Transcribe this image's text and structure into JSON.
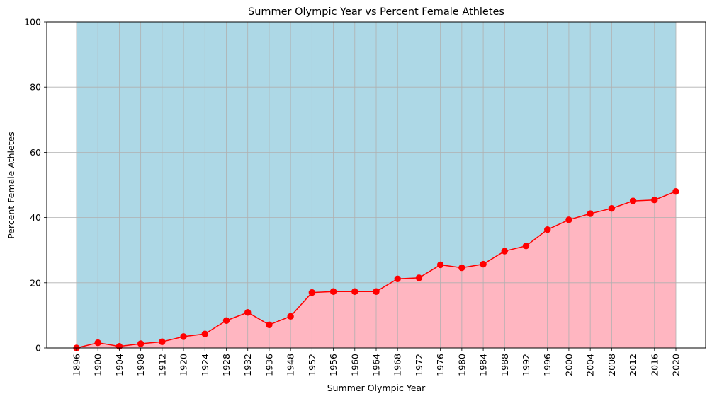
{
  "chart_data": {
    "type": "area",
    "title": "Summer Olympic Year vs Percent Female Athletes",
    "xlabel": "Summer Olympic Year",
    "ylabel": "Percent Female Athletes",
    "ylim": [
      0,
      100
    ],
    "yticks": [
      0,
      20,
      40,
      60,
      80,
      100
    ],
    "grid": true,
    "categories": [
      "1896",
      "1900",
      "1904",
      "1908",
      "1912",
      "1920",
      "1924",
      "1928",
      "1932",
      "1936",
      "1948",
      "1952",
      "1956",
      "1960",
      "1964",
      "1968",
      "1972",
      "1976",
      "1980",
      "1984",
      "1988",
      "1992",
      "1996",
      "2000",
      "2004",
      "2008",
      "2012",
      "2016",
      "2020"
    ],
    "series": [
      {
        "values": [
          0.0,
          1.6,
          0.5,
          1.3,
          1.9,
          3.5,
          4.3,
          8.4,
          10.9,
          7.1,
          9.7,
          17.0,
          17.3,
          17.3,
          17.3,
          21.2,
          21.5,
          25.5,
          24.6,
          25.7,
          29.7,
          31.3,
          36.3,
          39.3,
          41.2,
          42.8,
          45.1,
          45.4,
          48.0
        ]
      }
    ],
    "colors": {
      "line": "#ff0000",
      "marker": "#ff0000",
      "fill_below": "#ffb6c1",
      "fill_above": "#add8e6",
      "grid": "#b0b0b0"
    }
  }
}
